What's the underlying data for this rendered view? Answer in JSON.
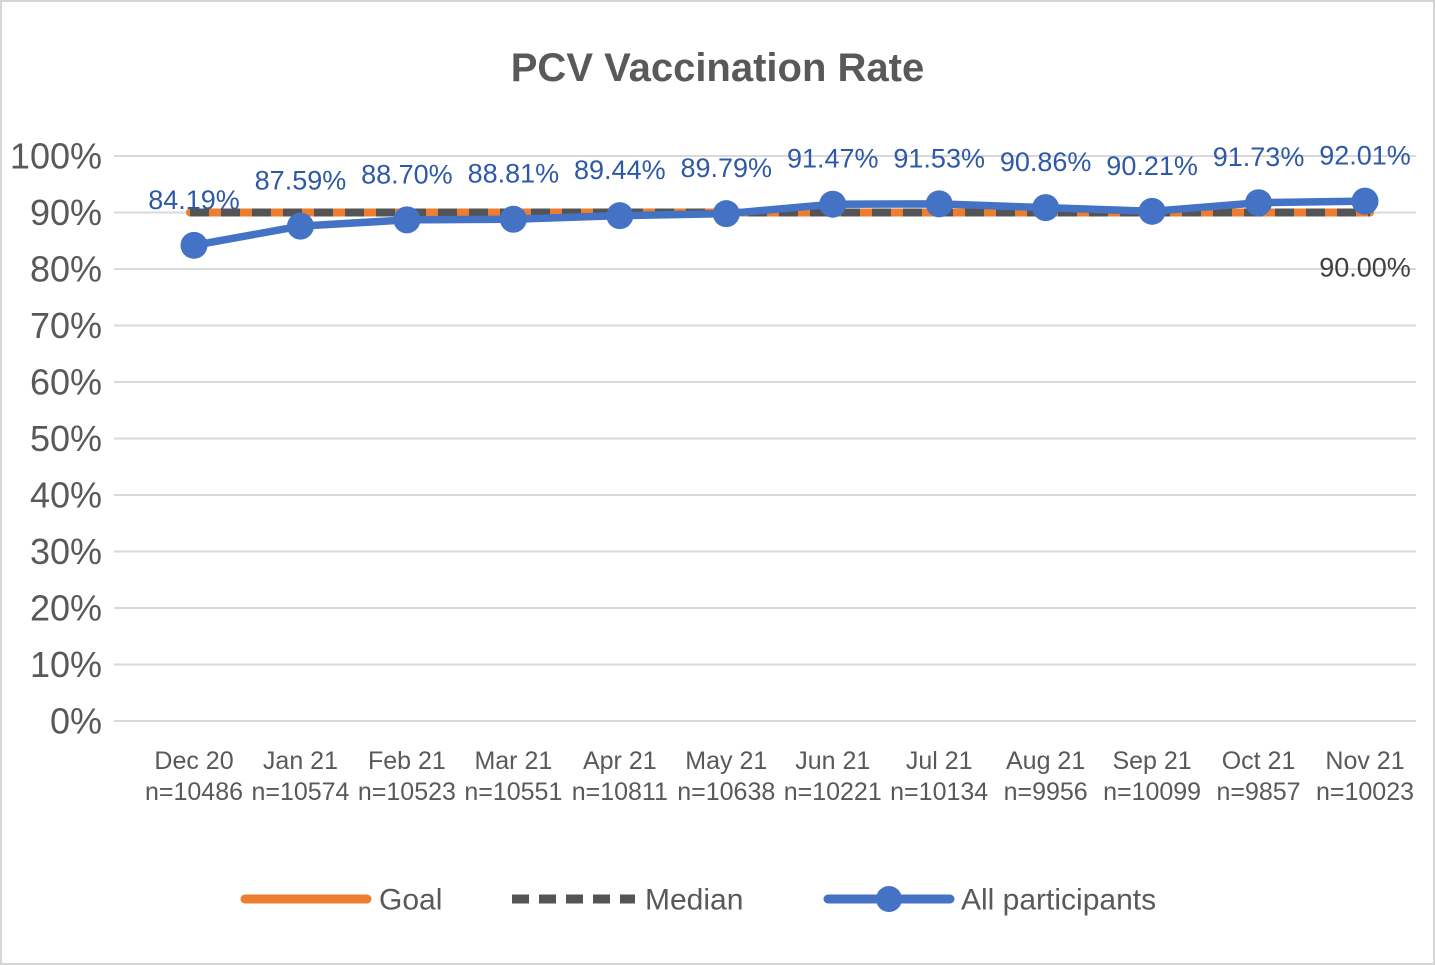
{
  "chart_data": {
    "type": "line",
    "title": "PCV Vaccination Rate",
    "x_axis": {
      "categories": [
        "Dec 20",
        "Jan 21",
        "Feb 21",
        "Mar 21",
        "Apr 21",
        "May 21",
        "Jun 21",
        "Jul 21",
        "Aug 21",
        "Sep 21",
        "Oct 21",
        "Nov 21"
      ],
      "sample_sizes": [
        "n=10486",
        "n=10574",
        "n=10523",
        "n=10551",
        "n=10811",
        "n=10638",
        "n=10221",
        "n=10134",
        "n=9956",
        "n=10099",
        "n=9857",
        "n=10023"
      ]
    },
    "y_axis": {
      "range": [
        0,
        100
      ],
      "tick_step": 10,
      "ticks": [
        {
          "value": 0,
          "label": "0%"
        },
        {
          "value": 10,
          "label": "10%"
        },
        {
          "value": 20,
          "label": "20%"
        },
        {
          "value": 30,
          "label": "30%"
        },
        {
          "value": 40,
          "label": "40%"
        },
        {
          "value": 50,
          "label": "50%"
        },
        {
          "value": 60,
          "label": "60%"
        },
        {
          "value": 70,
          "label": "70%"
        },
        {
          "value": 80,
          "label": "80%"
        },
        {
          "value": 90,
          "label": "90%"
        },
        {
          "value": 100,
          "label": "100%"
        }
      ],
      "grid": "horizontal"
    },
    "series": [
      {
        "name": "Goal",
        "style": "solid",
        "color": "#ED7D31",
        "constant_value": 90
      },
      {
        "name": "Median",
        "style": "dashed",
        "color": "#545454",
        "constant_value": 90,
        "value_label": "90.00%",
        "value_label_color": "#404040"
      },
      {
        "name": "All participants",
        "style": "line-markers",
        "color": "#4472C4",
        "values": [
          84.19,
          87.59,
          88.7,
          88.81,
          89.44,
          89.79,
          91.47,
          91.53,
          90.86,
          90.21,
          91.73,
          92.01
        ],
        "point_labels": [
          "84.19%",
          "87.59%",
          "88.70%",
          "88.81%",
          "89.44%",
          "89.79%",
          "91.47%",
          "91.53%",
          "90.86%",
          "90.21%",
          "91.73%",
          "92.01%"
        ],
        "point_label_color": "#2E59A6"
      }
    ],
    "legend": {
      "position": "bottom"
    },
    "colors": {
      "gridline": "#D9D9D9",
      "axis_text": "#595959",
      "title_text": "#595959",
      "background": "#FFFFFF",
      "frame_border": "#D5D5D5"
    }
  }
}
